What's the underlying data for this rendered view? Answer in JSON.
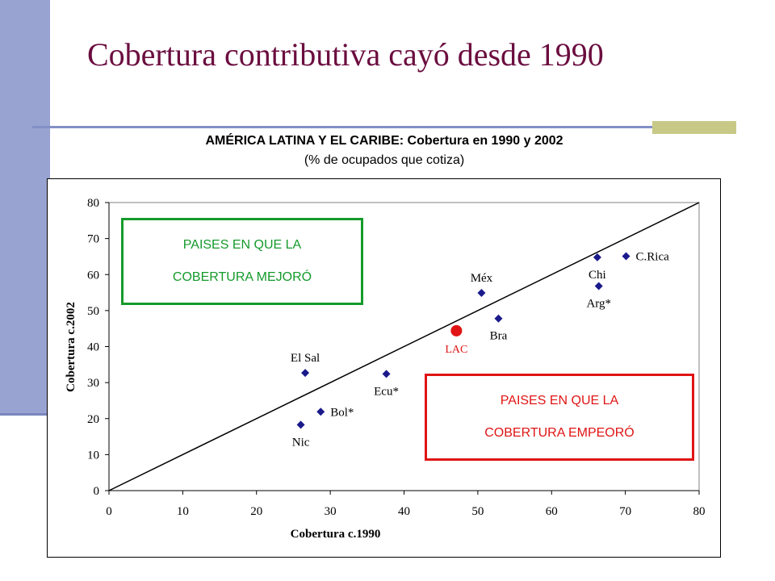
{
  "slide": {
    "title": "Cobertura contributiva cayó desde 1990",
    "chart_heading": "AMÉRICA LATINA Y EL CARIBE: Cobertura en 1990 y 2002",
    "chart_subheading": "(% de ocupados que cotiza)"
  },
  "boxes": {
    "improved": {
      "line1": "PAISES EN QUE LA",
      "line2": "COBERTURA MEJORÓ",
      "color": "#159a2b"
    },
    "worsened": {
      "line1": "PAISES EN QUE LA",
      "line2": "COBERTURA EMPEORÓ",
      "color": "#e01414"
    }
  },
  "chart_data": {
    "type": "scatter",
    "xlabel": "Cobertura c.1990",
    "ylabel": "Cobertura c.2002",
    "xlim": [
      0,
      80
    ],
    "ylim": [
      0,
      80
    ],
    "xticks": [
      0,
      10,
      20,
      30,
      40,
      50,
      60,
      70,
      80
    ],
    "yticks": [
      0,
      10,
      20,
      30,
      40,
      50,
      60,
      70,
      80
    ],
    "reference_line": {
      "from": [
        0,
        0
      ],
      "to": [
        80,
        80
      ]
    },
    "points": [
      {
        "label": "El Sal",
        "x": 26.6,
        "y": 32.7,
        "label_pos": "above"
      },
      {
        "label": "Nic",
        "x": 26.0,
        "y": 18.3,
        "label_pos": "below"
      },
      {
        "label": "Bol*",
        "x": 28.7,
        "y": 21.9,
        "label_pos": "right"
      },
      {
        "label": "Ecu*",
        "x": 37.6,
        "y": 32.4,
        "label_pos": "below"
      },
      {
        "label": "Méx",
        "x": 50.5,
        "y": 54.9,
        "label_pos": "above"
      },
      {
        "label": "Bra",
        "x": 52.8,
        "y": 47.8,
        "label_pos": "below"
      },
      {
        "label": "Chi",
        "x": 66.2,
        "y": 64.8,
        "label_pos": "below"
      },
      {
        "label": "C.Rica",
        "x": 70.1,
        "y": 65.1,
        "label_pos": "right"
      },
      {
        "label": "Arg*",
        "x": 66.4,
        "y": 56.8,
        "label_pos": "below"
      }
    ],
    "highlight": {
      "label": "LAC",
      "x": 47.1,
      "y": 44.4,
      "color": "#e01414"
    },
    "marker_color": "#1a1a8c"
  }
}
